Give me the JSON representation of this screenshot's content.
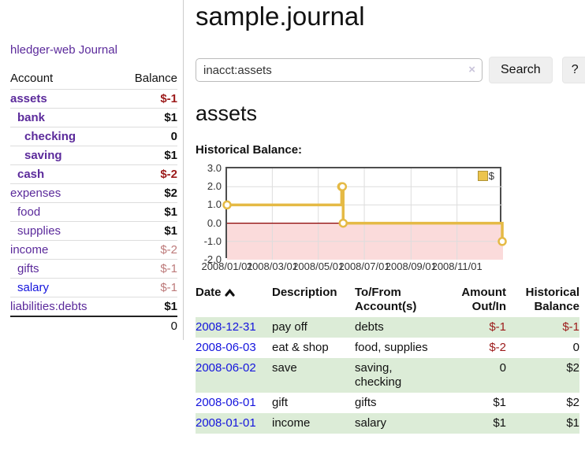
{
  "app": {
    "title": "hledger-web"
  },
  "sidebar": {
    "journal_link": "Journal",
    "accounts_header": {
      "account": "Account",
      "balance": "Balance"
    },
    "accounts": [
      {
        "name": "assets",
        "depth": 1,
        "balance": "$-1",
        "bold": true,
        "balance_class": "neg"
      },
      {
        "name": "bank",
        "depth": 2,
        "balance": "$1",
        "bold": true,
        "balance_class": "bold"
      },
      {
        "name": "checking",
        "depth": 3,
        "balance": "0",
        "bold": true,
        "balance_class": "bold"
      },
      {
        "name": "saving",
        "depth": 3,
        "balance": "$1",
        "bold": true,
        "balance_class": "bold"
      },
      {
        "name": "cash",
        "depth": 2,
        "balance": "$-2",
        "bold": true,
        "balance_class": "neg"
      },
      {
        "name": "expenses",
        "depth": 1,
        "balance": "$2",
        "bold": false,
        "balance_class": "bold"
      },
      {
        "name": "food",
        "depth": 2,
        "balance": "$1",
        "bold": false,
        "balance_class": "bold"
      },
      {
        "name": "supplies",
        "depth": 2,
        "balance": "$1",
        "bold": false,
        "balance_class": "bold"
      },
      {
        "name": "income",
        "depth": 1,
        "balance": "$-2",
        "bold": false,
        "balance_class": "rose"
      },
      {
        "name": "gifts",
        "depth": 2,
        "balance": "$-1",
        "bold": false,
        "balance_class": "rose"
      },
      {
        "name": "salary",
        "depth": 2,
        "balance": "$-1",
        "bold": false,
        "balance_class": "rose",
        "link_color": "blue"
      },
      {
        "name": "liabilities:debts",
        "depth": 1,
        "balance": "$1",
        "bold": false,
        "balance_class": "bold"
      }
    ],
    "total": "0"
  },
  "header": {
    "title": "sample.journal"
  },
  "search": {
    "value": "inacct:assets",
    "clear_icon": "×",
    "button_label": "Search",
    "help_label": "?"
  },
  "account_page": {
    "title": "assets",
    "chart_label": "Historical Balance:"
  },
  "chart_data": {
    "type": "line",
    "style": "step",
    "title": "Historical Balance:",
    "series": [
      {
        "name": "$",
        "color": "#e5ba45",
        "x": [
          "2008-01-01",
          "2008-06-01",
          "2008-06-02",
          "2008-06-03",
          "2008-12-31"
        ],
        "values": [
          1,
          2,
          2,
          0,
          -1
        ]
      }
    ],
    "x_range": [
      "2008-01-01",
      "2009-01-01"
    ],
    "x_ticks": [
      "2008/01/01",
      "2008/03/01",
      "2008/05/01",
      "2008/07/01",
      "2008/09/01",
      "2008/11/01"
    ],
    "y_ticks": [
      3.0,
      2.0,
      1.0,
      0.0,
      -1.0,
      -2.0
    ],
    "ylim": [
      -2.0,
      3.0
    ],
    "grid": true,
    "legend_position": "top-right",
    "zero_line_color": "#8b0000",
    "negative_region_color": "#fbdbdb"
  },
  "register": {
    "columns": [
      "Date",
      "Description",
      "To/From Account(s)",
      "Amount Out/In",
      "Historical Balance"
    ],
    "rows": [
      {
        "date": "2008-12-31",
        "description": "pay off",
        "accounts": "debts",
        "amount": "$-1",
        "balance": "$-1",
        "amount_negative": true,
        "balance_negative": true
      },
      {
        "date": "2008-06-03",
        "description": "eat & shop",
        "accounts": "food, supplies",
        "amount": "$-2",
        "balance": "0",
        "amount_negative": true,
        "balance_negative": false
      },
      {
        "date": "2008-06-02",
        "description": "save",
        "accounts": "saving, checking",
        "amount": "0",
        "balance": "$2",
        "amount_negative": false,
        "balance_negative": false
      },
      {
        "date": "2008-06-01",
        "description": "gift",
        "accounts": "gifts",
        "amount": "$1",
        "balance": "$2",
        "amount_negative": false,
        "balance_negative": false
      },
      {
        "date": "2008-01-01",
        "description": "income",
        "accounts": "salary",
        "amount": "$1",
        "balance": "$1",
        "amount_negative": false,
        "balance_negative": false
      }
    ]
  }
}
